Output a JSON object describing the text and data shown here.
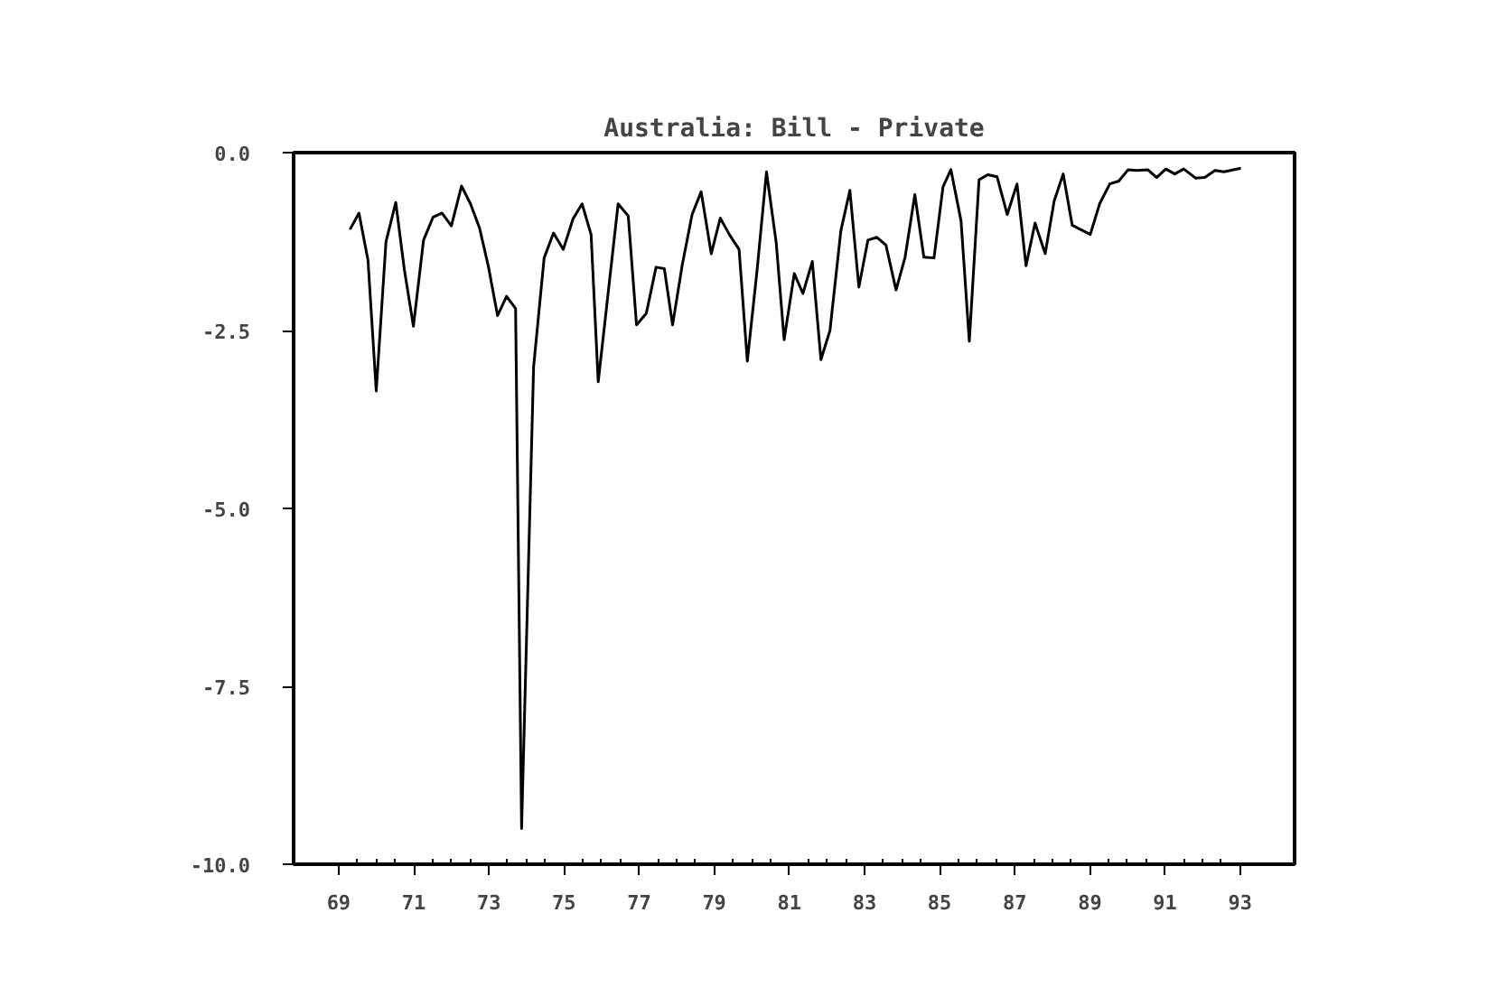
{
  "chart_data": {
    "type": "line",
    "title": "Australia: Bill - Private",
    "x": [
      69.3,
      69.54,
      69.78,
      70.0,
      70.26,
      70.52,
      70.75,
      70.99,
      71.26,
      71.51,
      71.75,
      72.0,
      72.27,
      72.51,
      72.75,
      72.99,
      73.23,
      73.47,
      73.71,
      73.87,
      74.19,
      74.47,
      74.72,
      74.98,
      75.24,
      75.48,
      75.72,
      75.91,
      76.44,
      76.71,
      76.93,
      77.19,
      77.45,
      77.67,
      77.89,
      78.15,
      78.41,
      78.65,
      78.92,
      79.16,
      79.4,
      79.66,
      79.88,
      80.14,
      80.39,
      80.65,
      80.86,
      81.13,
      81.36,
      81.61,
      81.84,
      82.08,
      82.37,
      82.61,
      82.85,
      83.09,
      83.33,
      83.57,
      83.84,
      84.08,
      84.34,
      84.58,
      84.85,
      85.09,
      85.3,
      85.57,
      85.79,
      86.05,
      86.29,
      86.53,
      86.8,
      87.06,
      87.3,
      87.54,
      87.81,
      88.05,
      88.29,
      88.53,
      89.01,
      89.26,
      89.53,
      89.77,
      90.02,
      90.26,
      90.54,
      90.78,
      91.02,
      91.26,
      91.5,
      91.82,
      92.06,
      92.33,
      92.57,
      93.02
    ],
    "series": [
      {
        "color": "#000000",
        "values": [
          -1.08,
          -0.85,
          -1.51,
          -3.35,
          -1.25,
          -0.7,
          -1.65,
          -2.44,
          -1.23,
          -0.91,
          -0.85,
          -1.03,
          -0.47,
          -0.72,
          -1.06,
          -1.61,
          -2.29,
          -2.02,
          -2.19,
          -9.5,
          -3.01,
          -1.48,
          -1.13,
          -1.36,
          -0.93,
          -0.72,
          -1.15,
          -3.22,
          -0.72,
          -0.89,
          -2.42,
          -2.26,
          -1.61,
          -1.63,
          -2.42,
          -1.57,
          -0.87,
          -0.55,
          -1.42,
          -0.92,
          -1.15,
          -1.36,
          -2.93,
          -1.65,
          -0.27,
          -1.27,
          -2.63,
          -1.7,
          -1.98,
          -1.53,
          -2.91,
          -2.5,
          -1.1,
          -0.53,
          -1.89,
          -1.23,
          -1.19,
          -1.3,
          -1.93,
          -1.47,
          -0.59,
          -1.47,
          -1.48,
          -0.48,
          -0.24,
          -0.96,
          -2.65,
          -0.38,
          -0.31,
          -0.34,
          -0.87,
          -0.44,
          -1.59,
          -0.99,
          -1.42,
          -0.68,
          -0.3,
          -1.02,
          -1.15,
          -0.72,
          -0.44,
          -0.4,
          -0.24,
          -0.25,
          -0.24,
          -0.35,
          -0.23,
          -0.3,
          -0.23,
          -0.36,
          -0.35,
          -0.25,
          -0.27,
          -0.22
        ]
      }
    ],
    "xlim": [
      67.8,
      94.45
    ],
    "ylim": [
      -10.0,
      0.0
    ],
    "xticks": [
      69,
      71,
      73,
      75,
      77,
      79,
      81,
      83,
      85,
      87,
      89,
      91,
      93
    ],
    "yticks": [
      {
        "value": 0.0,
        "label": "0.0"
      },
      {
        "value": -2.5,
        "label": "-2.5"
      },
      {
        "value": -5.0,
        "label": "-5.0"
      },
      {
        "value": -7.5,
        "label": "-7.5"
      },
      {
        "value": -10.0,
        "label": "-10.0"
      }
    ],
    "marker": "none",
    "line_style": "solid"
  }
}
